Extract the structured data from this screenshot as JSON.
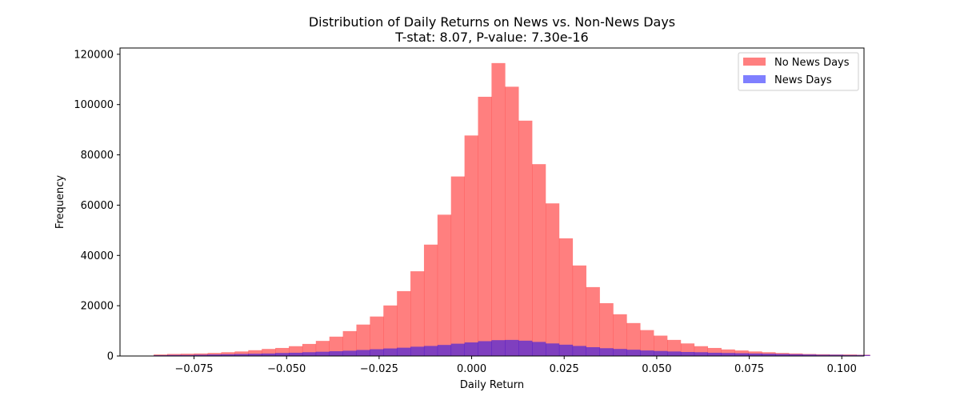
{
  "chart_data": {
    "type": "bar",
    "title": "Distribution of Daily Returns on News vs. Non-News Days",
    "subtitle": "T-stat: 8.07, P-value: 7.30e-16",
    "xlabel": "Daily Return",
    "ylabel": "Frequency",
    "xlim": [
      -0.095,
      0.106
    ],
    "ylim": [
      0,
      122500
    ],
    "x_ticks": [
      -0.075,
      -0.05,
      -0.025,
      0.0,
      0.025,
      0.05,
      0.075,
      0.1
    ],
    "x_tick_labels": [
      "−0.075",
      "−0.050",
      "−0.025",
      "0.000",
      "0.025",
      "0.050",
      "0.075",
      "0.100"
    ],
    "y_ticks": [
      0,
      20000,
      40000,
      60000,
      80000,
      100000,
      120000
    ],
    "y_tick_labels": [
      "0",
      "20000",
      "40000",
      "60000",
      "80000",
      "100000",
      "120000"
    ],
    "grid": false,
    "legend_position": "top-right",
    "bin_start": -0.0859,
    "bin_width": 0.003651,
    "series": [
      {
        "name": "No News Days",
        "color": "#ff0000",
        "alpha": 0.5,
        "values": [
          600,
          800,
          900,
          1000,
          1200,
          1500,
          1800,
          2300,
          2800,
          3200,
          3900,
          4800,
          6000,
          7700,
          9900,
          12500,
          15700,
          20100,
          25800,
          33700,
          44300,
          56200,
          71400,
          87700,
          103100,
          116500,
          107100,
          93600,
          76300,
          60700,
          46800,
          36000,
          27400,
          21000,
          16600,
          13100,
          10300,
          8100,
          6400,
          5000,
          3900,
          3200,
          2600,
          2200,
          1800,
          1500,
          1200,
          1000,
          800,
          700,
          600,
          600,
          500
        ]
      },
      {
        "name": "News Days",
        "color": "#0000ff",
        "alpha": 0.5,
        "values": [
          300,
          400,
          400,
          500,
          600,
          700,
          800,
          900,
          1000,
          1200,
          1300,
          1500,
          1700,
          1900,
          2100,
          2400,
          2700,
          3000,
          3300,
          3700,
          4000,
          4400,
          4900,
          5400,
          5900,
          6300,
          6400,
          6100,
          5600,
          5000,
          4500,
          4000,
          3500,
          3100,
          2800,
          2500,
          2200,
          2000,
          1800,
          1600,
          1500,
          1300,
          1200,
          1100,
          1000,
          900,
          800,
          700,
          600,
          500,
          500,
          400,
          400
        ]
      }
    ]
  }
}
